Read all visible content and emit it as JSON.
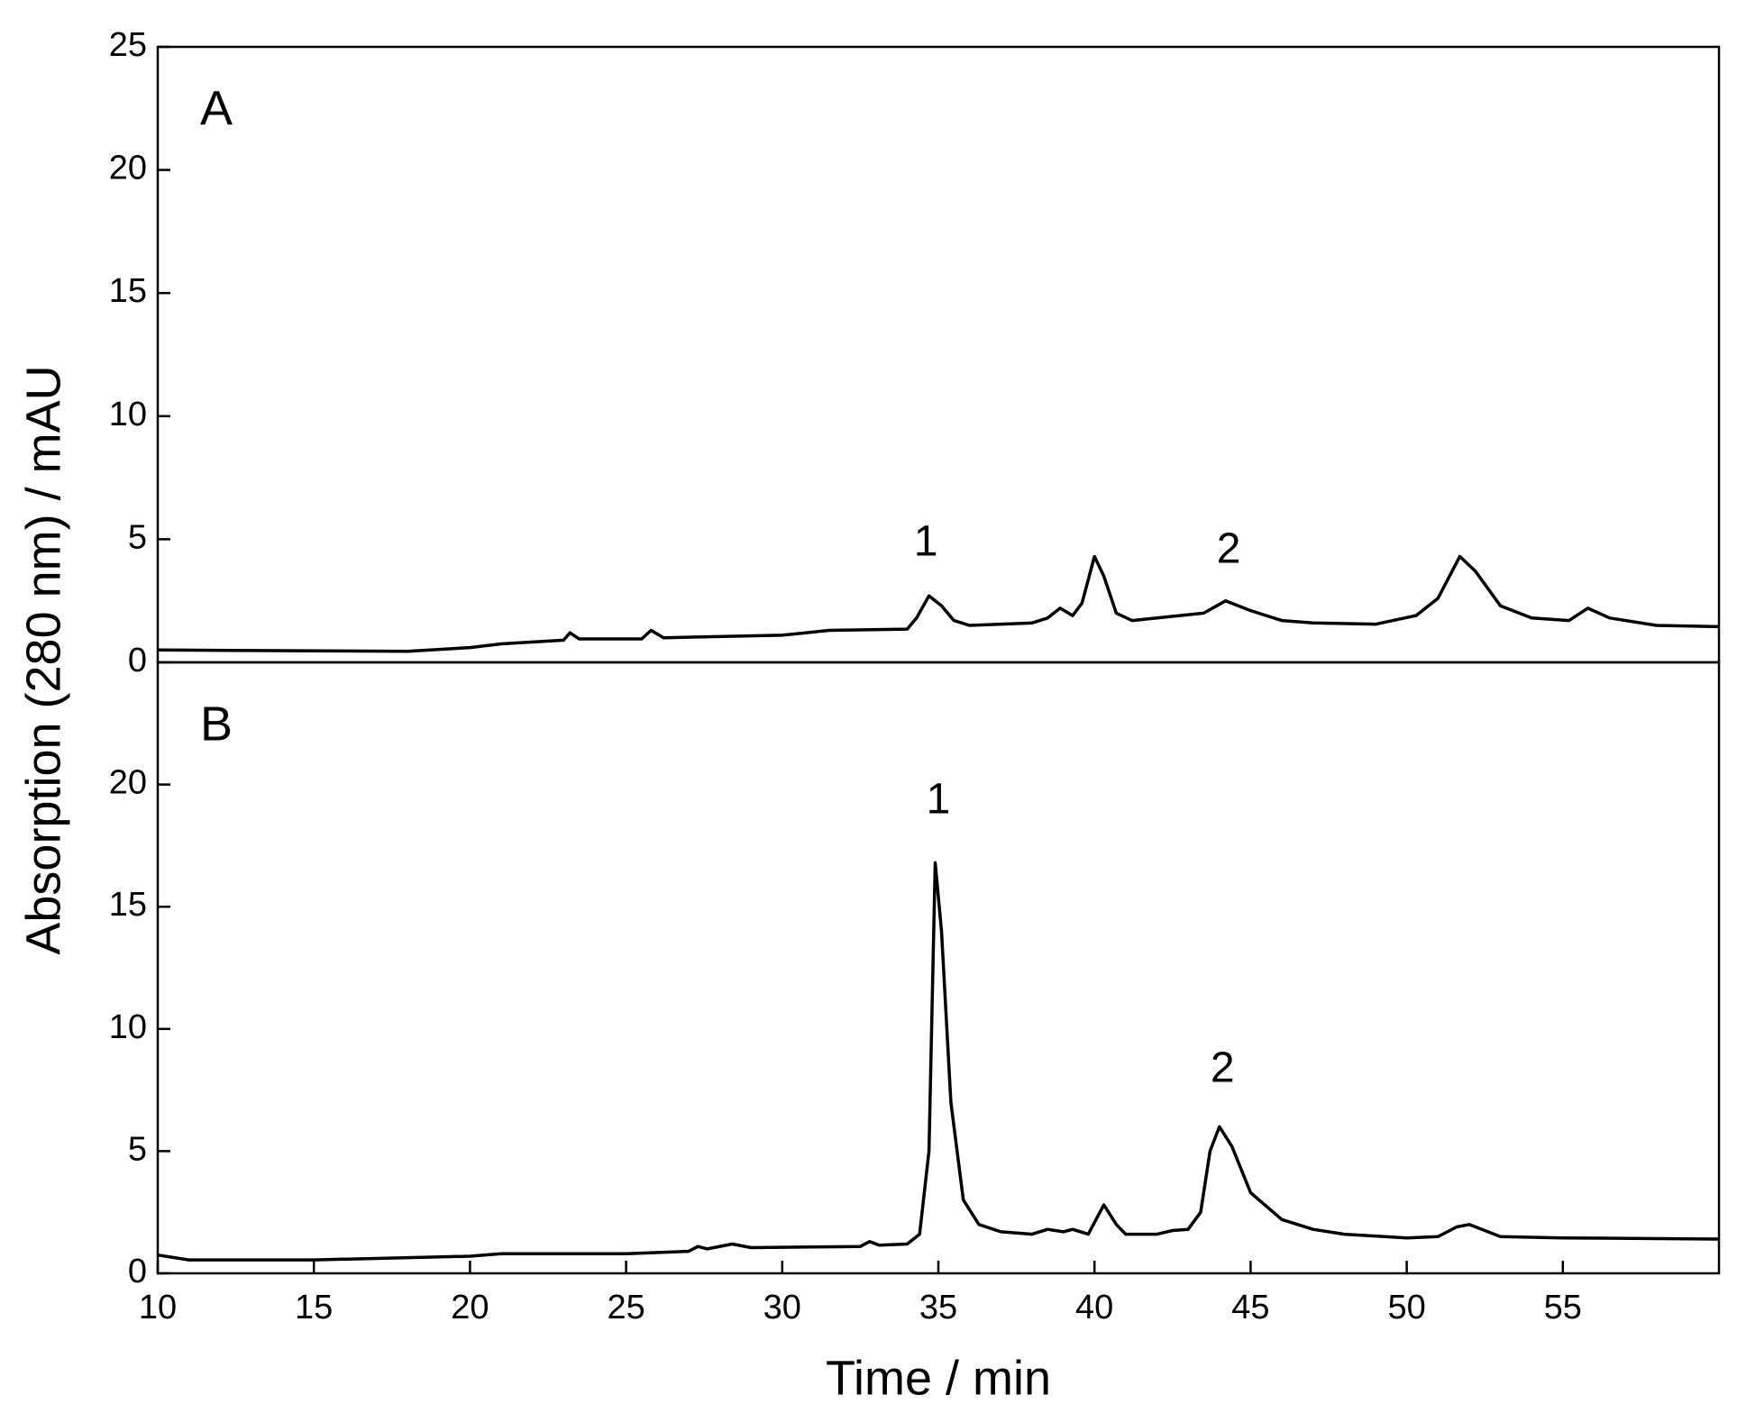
{
  "chart_data": [
    {
      "type": "line",
      "label": "A",
      "y_label": "Absorption (280 nm) / mAU",
      "color": "#000000",
      "xlim": [
        10,
        60
      ],
      "ylim": [
        0,
        25
      ],
      "yticks": [
        0,
        5,
        10,
        15,
        20,
        25
      ],
      "x": [
        10,
        18,
        20,
        21,
        23,
        23.2,
        23.5,
        25.5,
        25.8,
        26.2,
        30,
        31.5,
        34,
        34.3,
        34.7,
        35.1,
        35.5,
        36,
        38,
        38.5,
        38.9,
        39.3,
        39.6,
        40,
        40.3,
        40.7,
        41.2,
        42,
        43.5,
        44.2,
        45,
        46,
        47,
        49,
        50.3,
        51,
        51.7,
        52.2,
        53,
        54,
        55.2,
        55.8,
        56.5,
        58,
        60
      ],
      "values": [
        0.5,
        0.45,
        0.6,
        0.75,
        0.9,
        1.2,
        0.95,
        0.95,
        1.3,
        1.0,
        1.1,
        1.3,
        1.35,
        1.8,
        2.7,
        2.3,
        1.7,
        1.5,
        1.6,
        1.8,
        2.2,
        1.9,
        2.4,
        4.3,
        3.5,
        2.0,
        1.7,
        1.8,
        2.0,
        2.5,
        2.1,
        1.7,
        1.6,
        1.55,
        1.9,
        2.6,
        4.3,
        3.7,
        2.3,
        1.8,
        1.7,
        2.2,
        1.8,
        1.5,
        1.45
      ],
      "annotations": [
        {
          "text": "1",
          "x": 34.6,
          "y": 4.8
        },
        {
          "text": "2",
          "x": 44.3,
          "y": 4.5
        }
      ]
    },
    {
      "type": "line",
      "label": "B",
      "x_label": "Time / min",
      "color": "#000000",
      "xlim": [
        10,
        60
      ],
      "xticks": [
        10,
        15,
        20,
        25,
        30,
        35,
        40,
        45,
        50,
        55
      ],
      "ylim": [
        0,
        25
      ],
      "yticks": [
        0,
        5,
        10,
        15,
        20
      ],
      "x": [
        10,
        11,
        15,
        20,
        21,
        25,
        27,
        27.3,
        27.6,
        28.4,
        29,
        32.5,
        32.8,
        33.1,
        34,
        34.4,
        34.7,
        34.9,
        35.1,
        35.4,
        35.8,
        36.3,
        37,
        38,
        38.5,
        39,
        39.3,
        39.8,
        40.3,
        40.7,
        41,
        42,
        42.5,
        43,
        43.4,
        43.7,
        44,
        44.4,
        45,
        46,
        47,
        48,
        50,
        51,
        51.6,
        52,
        53,
        55,
        60
      ],
      "values": [
        0.75,
        0.55,
        0.55,
        0.7,
        0.8,
        0.8,
        0.9,
        1.1,
        1.0,
        1.2,
        1.05,
        1.1,
        1.3,
        1.15,
        1.2,
        1.6,
        5,
        16.8,
        14,
        7,
        3,
        2,
        1.7,
        1.6,
        1.8,
        1.7,
        1.8,
        1.6,
        2.8,
        2.0,
        1.6,
        1.6,
        1.75,
        1.8,
        2.5,
        5,
        6.0,
        5.2,
        3.3,
        2.2,
        1.8,
        1.6,
        1.45,
        1.5,
        1.9,
        2.0,
        1.5,
        1.45,
        1.4
      ],
      "annotations": [
        {
          "text": "1",
          "x": 35,
          "y": 19.3
        },
        {
          "text": "2",
          "x": 44.1,
          "y": 8.3
        }
      ]
    }
  ]
}
